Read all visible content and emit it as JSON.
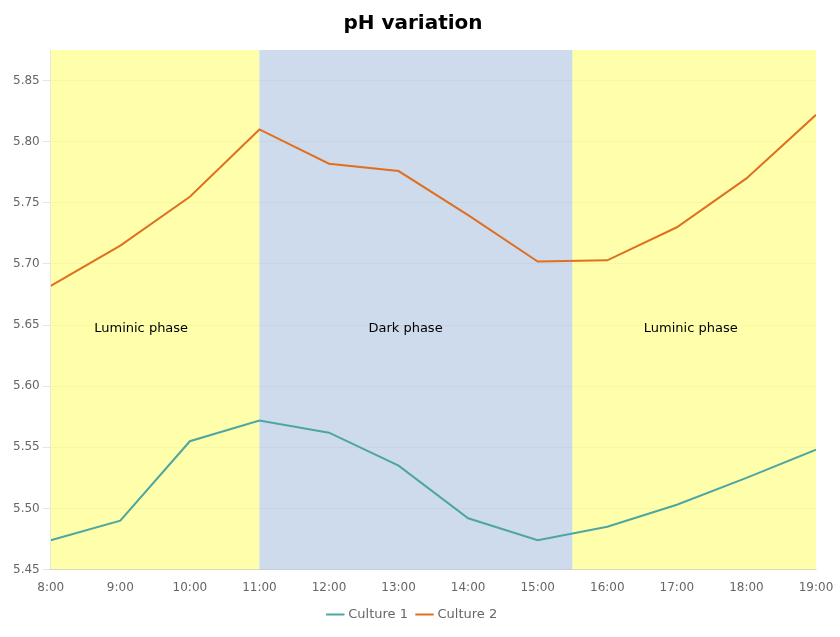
{
  "chart_data": {
    "type": "line",
    "title": "pH variation",
    "x": [
      8,
      9,
      10,
      11,
      12,
      13,
      14,
      15,
      16,
      17,
      18,
      19
    ],
    "series": [
      {
        "name": "Culture 1",
        "color": "#4DA6A0",
        "values": [
          5.474,
          5.49,
          5.555,
          5.572,
          5.562,
          5.535,
          5.492,
          5.474,
          5.485,
          5.503,
          5.525,
          5.548
        ]
      },
      {
        "name": "Culture 2",
        "color": "#E07020",
        "values": [
          5.682,
          5.715,
          5.755,
          5.81,
          5.782,
          5.776,
          5.74,
          5.702,
          5.703,
          5.73,
          5.77,
          5.822
        ]
      }
    ],
    "xlim": [
      8,
      19
    ],
    "xticks": [
      {
        "value": 8,
        "label": "8:00"
      },
      {
        "value": 9,
        "label": "9:00"
      },
      {
        "value": 10,
        "label": "10:00"
      },
      {
        "value": 11,
        "label": "11:00"
      },
      {
        "value": 12,
        "label": "12:00"
      },
      {
        "value": 13,
        "label": "13:00"
      },
      {
        "value": 14,
        "label": "14:00"
      },
      {
        "value": 15,
        "label": "15:00"
      },
      {
        "value": 16,
        "label": "16:00"
      },
      {
        "value": 17,
        "label": "17:00"
      },
      {
        "value": 18,
        "label": "18:00"
      },
      {
        "value": 19,
        "label": "19:00"
      }
    ],
    "ylim": [
      5.45,
      5.875
    ],
    "yticks": [
      5.45,
      {
        "value": 5.5,
        "label": "5.50"
      },
      5.55,
      {
        "value": 5.6,
        "label": "5.60"
      },
      5.65,
      {
        "value": 5.7,
        "label": "5.70"
      },
      5.75,
      {
        "value": 5.8,
        "label": "5.80"
      },
      5.85
    ],
    "spans": [
      {
        "x0": 8,
        "x1": 11,
        "color": "#FFFF88"
      },
      {
        "x0": 11,
        "x1": 15.5,
        "color": "#B8CCE4"
      },
      {
        "x0": 15.5,
        "x1": 19,
        "color": "#FFFF88"
      }
    ],
    "annotations": [
      {
        "text": "Luminic phase",
        "x": 9.3,
        "y": 5.647
      },
      {
        "text": "Dark phase",
        "x": 13.1,
        "y": 5.647
      },
      {
        "text": "Luminic phase",
        "x": 17.2,
        "y": 5.647
      }
    ],
    "grid": "y",
    "legend": "bottom"
  }
}
